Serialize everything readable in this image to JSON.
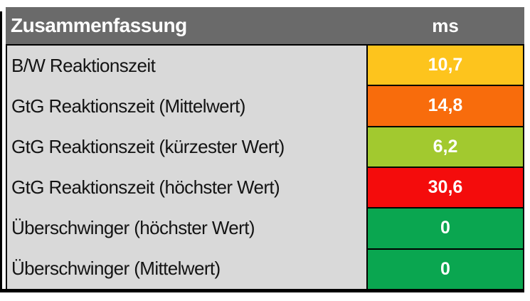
{
  "chart_data": {
    "type": "table",
    "title": "Zusammenfassung",
    "unit": "ms",
    "columns": [
      "Zusammenfassung",
      "ms"
    ],
    "rows": [
      {
        "label": "B/W Reaktionszeit",
        "display": "10,7",
        "value": 10.7,
        "color": "#fdc41d"
      },
      {
        "label": "GtG Reaktionszeit (Mittelwert)",
        "display": "14,8",
        "value": 14.8,
        "color": "#f86c0c"
      },
      {
        "label": "GtG Reaktionszeit (kürzester Wert)",
        "display": "6,2",
        "value": 6.2,
        "color": "#a2c92f"
      },
      {
        "label": "GtG Reaktionszeit (höchster Wert)",
        "display": "30,6",
        "value": 30.6,
        "color": "#f40c0c"
      },
      {
        "label": "Überschwinger (höchster Wert)",
        "display": "0",
        "value": 0,
        "color": "#0aa650"
      },
      {
        "label": "Überschwinger (Mittelwert)",
        "display": "0",
        "value": 0,
        "color": "#0aa650"
      }
    ],
    "colors": {
      "header_bg": "#6a6a6a",
      "header_text": "#ffffff",
      "label_bg": "#d9d9d9",
      "label_text": "#141414",
      "value_text": "#ffffff",
      "border": "#000000"
    },
    "layout_hints": {
      "value_column_position": "right",
      "grid": "borders on value column and table outline only"
    }
  }
}
